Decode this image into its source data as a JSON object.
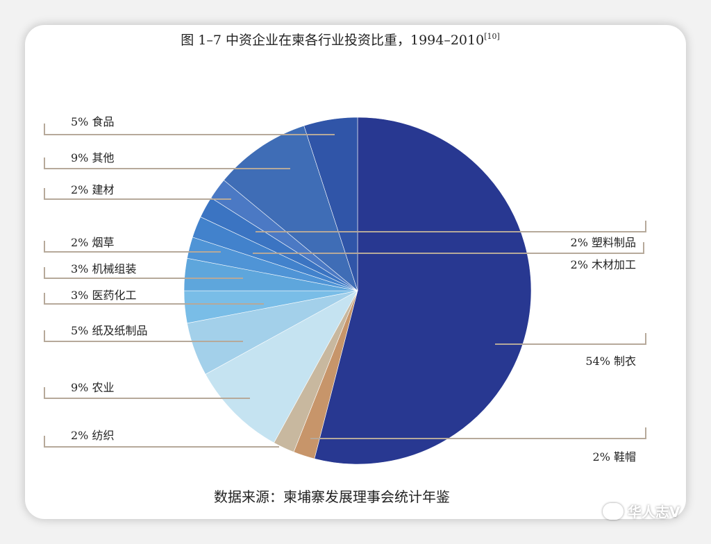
{
  "title_main": "图 1–7 中资企业在柬各行业投资比重，1994–2010",
  "title_ref": "[10]",
  "source": "数据来源：柬埔寨发展理事会统计年鉴",
  "watermark": "华人志V",
  "chart_data": {
    "type": "pie",
    "title": "图 1–7 中资企业在柬各行业投资比重，1994–2010[10]",
    "slices": [
      {
        "name": "制衣",
        "label": "54%  制衣",
        "value": 54,
        "color": "#283891"
      },
      {
        "name": "鞋帽",
        "label": "2%  鞋帽",
        "value": 2,
        "color": "#c7956a"
      },
      {
        "name": "纺织",
        "label": "2%  纺织",
        "value": 2,
        "color": "#c8b89f"
      },
      {
        "name": "农业",
        "label": "9% 农业",
        "value": 9,
        "color": "#c5e3f1"
      },
      {
        "name": "纸及纸制品",
        "label": "5%  纸及纸制品",
        "value": 5,
        "color": "#a3d0ea"
      },
      {
        "name": "医药化工",
        "label": "3%  医药化工",
        "value": 3,
        "color": "#79bde7"
      },
      {
        "name": "机械组装",
        "label": "3%  机械组装",
        "value": 3,
        "color": "#5ea6dc"
      },
      {
        "name": "烟草",
        "label": "2%  烟草",
        "value": 2,
        "color": "#4f94d6"
      },
      {
        "name": "木材加工",
        "label": "2%  木材加工",
        "value": 2,
        "color": "#4282cc"
      },
      {
        "name": "塑料制品",
        "label": "2%  塑料制品",
        "value": 2,
        "color": "#3b74c2"
      },
      {
        "name": "建材",
        "label": "2%  建材",
        "value": 2,
        "color": "#4b79c4"
      },
      {
        "name": "其他",
        "label": "9%  其他",
        "value": 9,
        "color": "#3f6db6"
      },
      {
        "name": "食品",
        "label": "5%  食品",
        "value": 5,
        "color": "#3055a8"
      }
    ]
  }
}
